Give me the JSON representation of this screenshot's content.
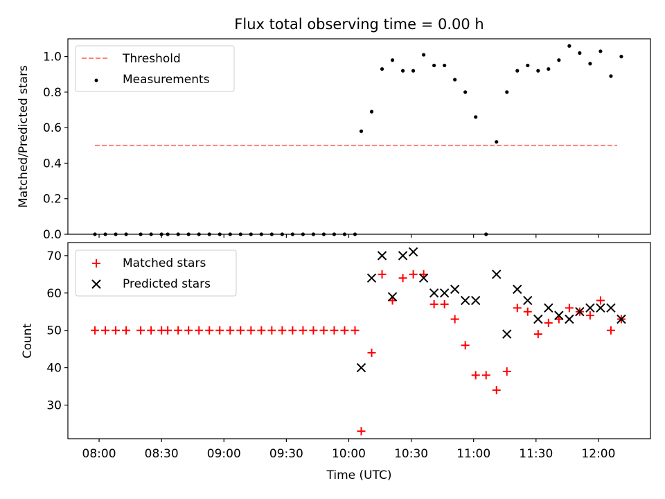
{
  "title": "Flux total observing time = 0.00 h",
  "xlabel": "Time (UTC)",
  "x_ticks": [
    "08:00",
    "08:30",
    "09:00",
    "09:30",
    "10:00",
    "10:30",
    "11:00",
    "11:30",
    "12:00"
  ],
  "chart_data": [
    {
      "type": "scatter",
      "title": "Flux total observing time = 0.00 h",
      "ylabel": "Matched/Predicted stars",
      "ylim": [
        0,
        1.1
      ],
      "y_ticks": [
        "0.0",
        "0.2",
        "0.4",
        "0.6",
        "0.8",
        "1.0"
      ],
      "xlim": [
        "07:45",
        "12:25"
      ],
      "legend_position": "top-left",
      "threshold": {
        "name": "Threshold",
        "value": 0.5,
        "x_start": "07:58",
        "x_end": "12:09",
        "color": "#ff7f7f",
        "style": "dashed"
      },
      "series": [
        {
          "name": "Measurements",
          "marker": "dot",
          "color": "#000000",
          "x": [
            "07:58",
            "08:03",
            "08:08",
            "08:13",
            "08:20",
            "08:25",
            "08:30",
            "08:33",
            "08:38",
            "08:43",
            "08:48",
            "08:53",
            "08:58",
            "09:03",
            "09:08",
            "09:13",
            "09:18",
            "09:23",
            "09:28",
            "09:33",
            "09:38",
            "09:43",
            "09:48",
            "09:53",
            "09:58",
            "10:03",
            "10:06",
            "10:11",
            "10:16",
            "10:21",
            "10:26",
            "10:31",
            "10:36",
            "10:41",
            "10:46",
            "10:51",
            "10:56",
            "11:01",
            "11:06",
            "11:11",
            "11:16",
            "11:21",
            "11:26",
            "11:31",
            "11:36",
            "11:41",
            "11:46",
            "11:51",
            "11:56",
            "12:01",
            "12:06",
            "12:11"
          ],
          "y": [
            0,
            0,
            0,
            0,
            0,
            0,
            0,
            0,
            0,
            0,
            0,
            0,
            0,
            0,
            0,
            0,
            0,
            0,
            0,
            0,
            0,
            0,
            0,
            0,
            0,
            0,
            0.58,
            0.69,
            0.93,
            0.98,
            0.92,
            0.92,
            1.01,
            0.95,
            0.95,
            0.87,
            0.8,
            0.66,
            0,
            0.52,
            0.8,
            0.92,
            0.95,
            0.92,
            0.93,
            0.98,
            1.06,
            1.02,
            0.96,
            1.03,
            0.89,
            1.0
          ]
        }
      ]
    },
    {
      "type": "scatter",
      "ylabel": "Count",
      "ylim": [
        21,
        73.5
      ],
      "y_ticks": [
        "30",
        "40",
        "50",
        "60",
        "70"
      ],
      "xlim": [
        "07:45",
        "12:25"
      ],
      "legend_position": "top-left",
      "series": [
        {
          "name": "Matched stars",
          "marker": "plus",
          "color": "#ff0000",
          "x": [
            "07:58",
            "08:03",
            "08:08",
            "08:13",
            "08:20",
            "08:25",
            "08:30",
            "08:33",
            "08:38",
            "08:43",
            "08:48",
            "08:53",
            "08:58",
            "09:03",
            "09:08",
            "09:13",
            "09:18",
            "09:23",
            "09:28",
            "09:33",
            "09:38",
            "09:43",
            "09:48",
            "09:53",
            "09:58",
            "10:03",
            "10:06",
            "10:11",
            "10:16",
            "10:21",
            "10:26",
            "10:31",
            "10:36",
            "10:41",
            "10:46",
            "10:51",
            "10:56",
            "11:01",
            "11:06",
            "11:11",
            "11:16",
            "11:21",
            "11:26",
            "11:31",
            "11:36",
            "11:41",
            "11:46",
            "11:51",
            "11:56",
            "12:01",
            "12:06",
            "12:11"
          ],
          "y": [
            50,
            50,
            50,
            50,
            50,
            50,
            50,
            50,
            50,
            50,
            50,
            50,
            50,
            50,
            50,
            50,
            50,
            50,
            50,
            50,
            50,
            50,
            50,
            50,
            50,
            50,
            23,
            44,
            65,
            58,
            64,
            65,
            65,
            57,
            57,
            53,
            46,
            38,
            38,
            34,
            39,
            56,
            55,
            49,
            52,
            53,
            56,
            55,
            54,
            58,
            50,
            53
          ]
        },
        {
          "name": "Predicted stars",
          "marker": "x",
          "color": "#000000",
          "x": [
            "10:06",
            "10:11",
            "10:16",
            "10:21",
            "10:26",
            "10:31",
            "10:36",
            "10:41",
            "10:46",
            "10:51",
            "10:56",
            "11:01",
            "11:11",
            "11:16",
            "11:21",
            "11:26",
            "11:31",
            "11:36",
            "11:41",
            "11:46",
            "11:51",
            "11:56",
            "12:01",
            "12:06",
            "12:11"
          ],
          "y": [
            40,
            64,
            70,
            59,
            70,
            71,
            64,
            60,
            60,
            61,
            58,
            58,
            65,
            49,
            61,
            58,
            53,
            56,
            54,
            53,
            55,
            56,
            56,
            56,
            53
          ]
        }
      ]
    }
  ]
}
